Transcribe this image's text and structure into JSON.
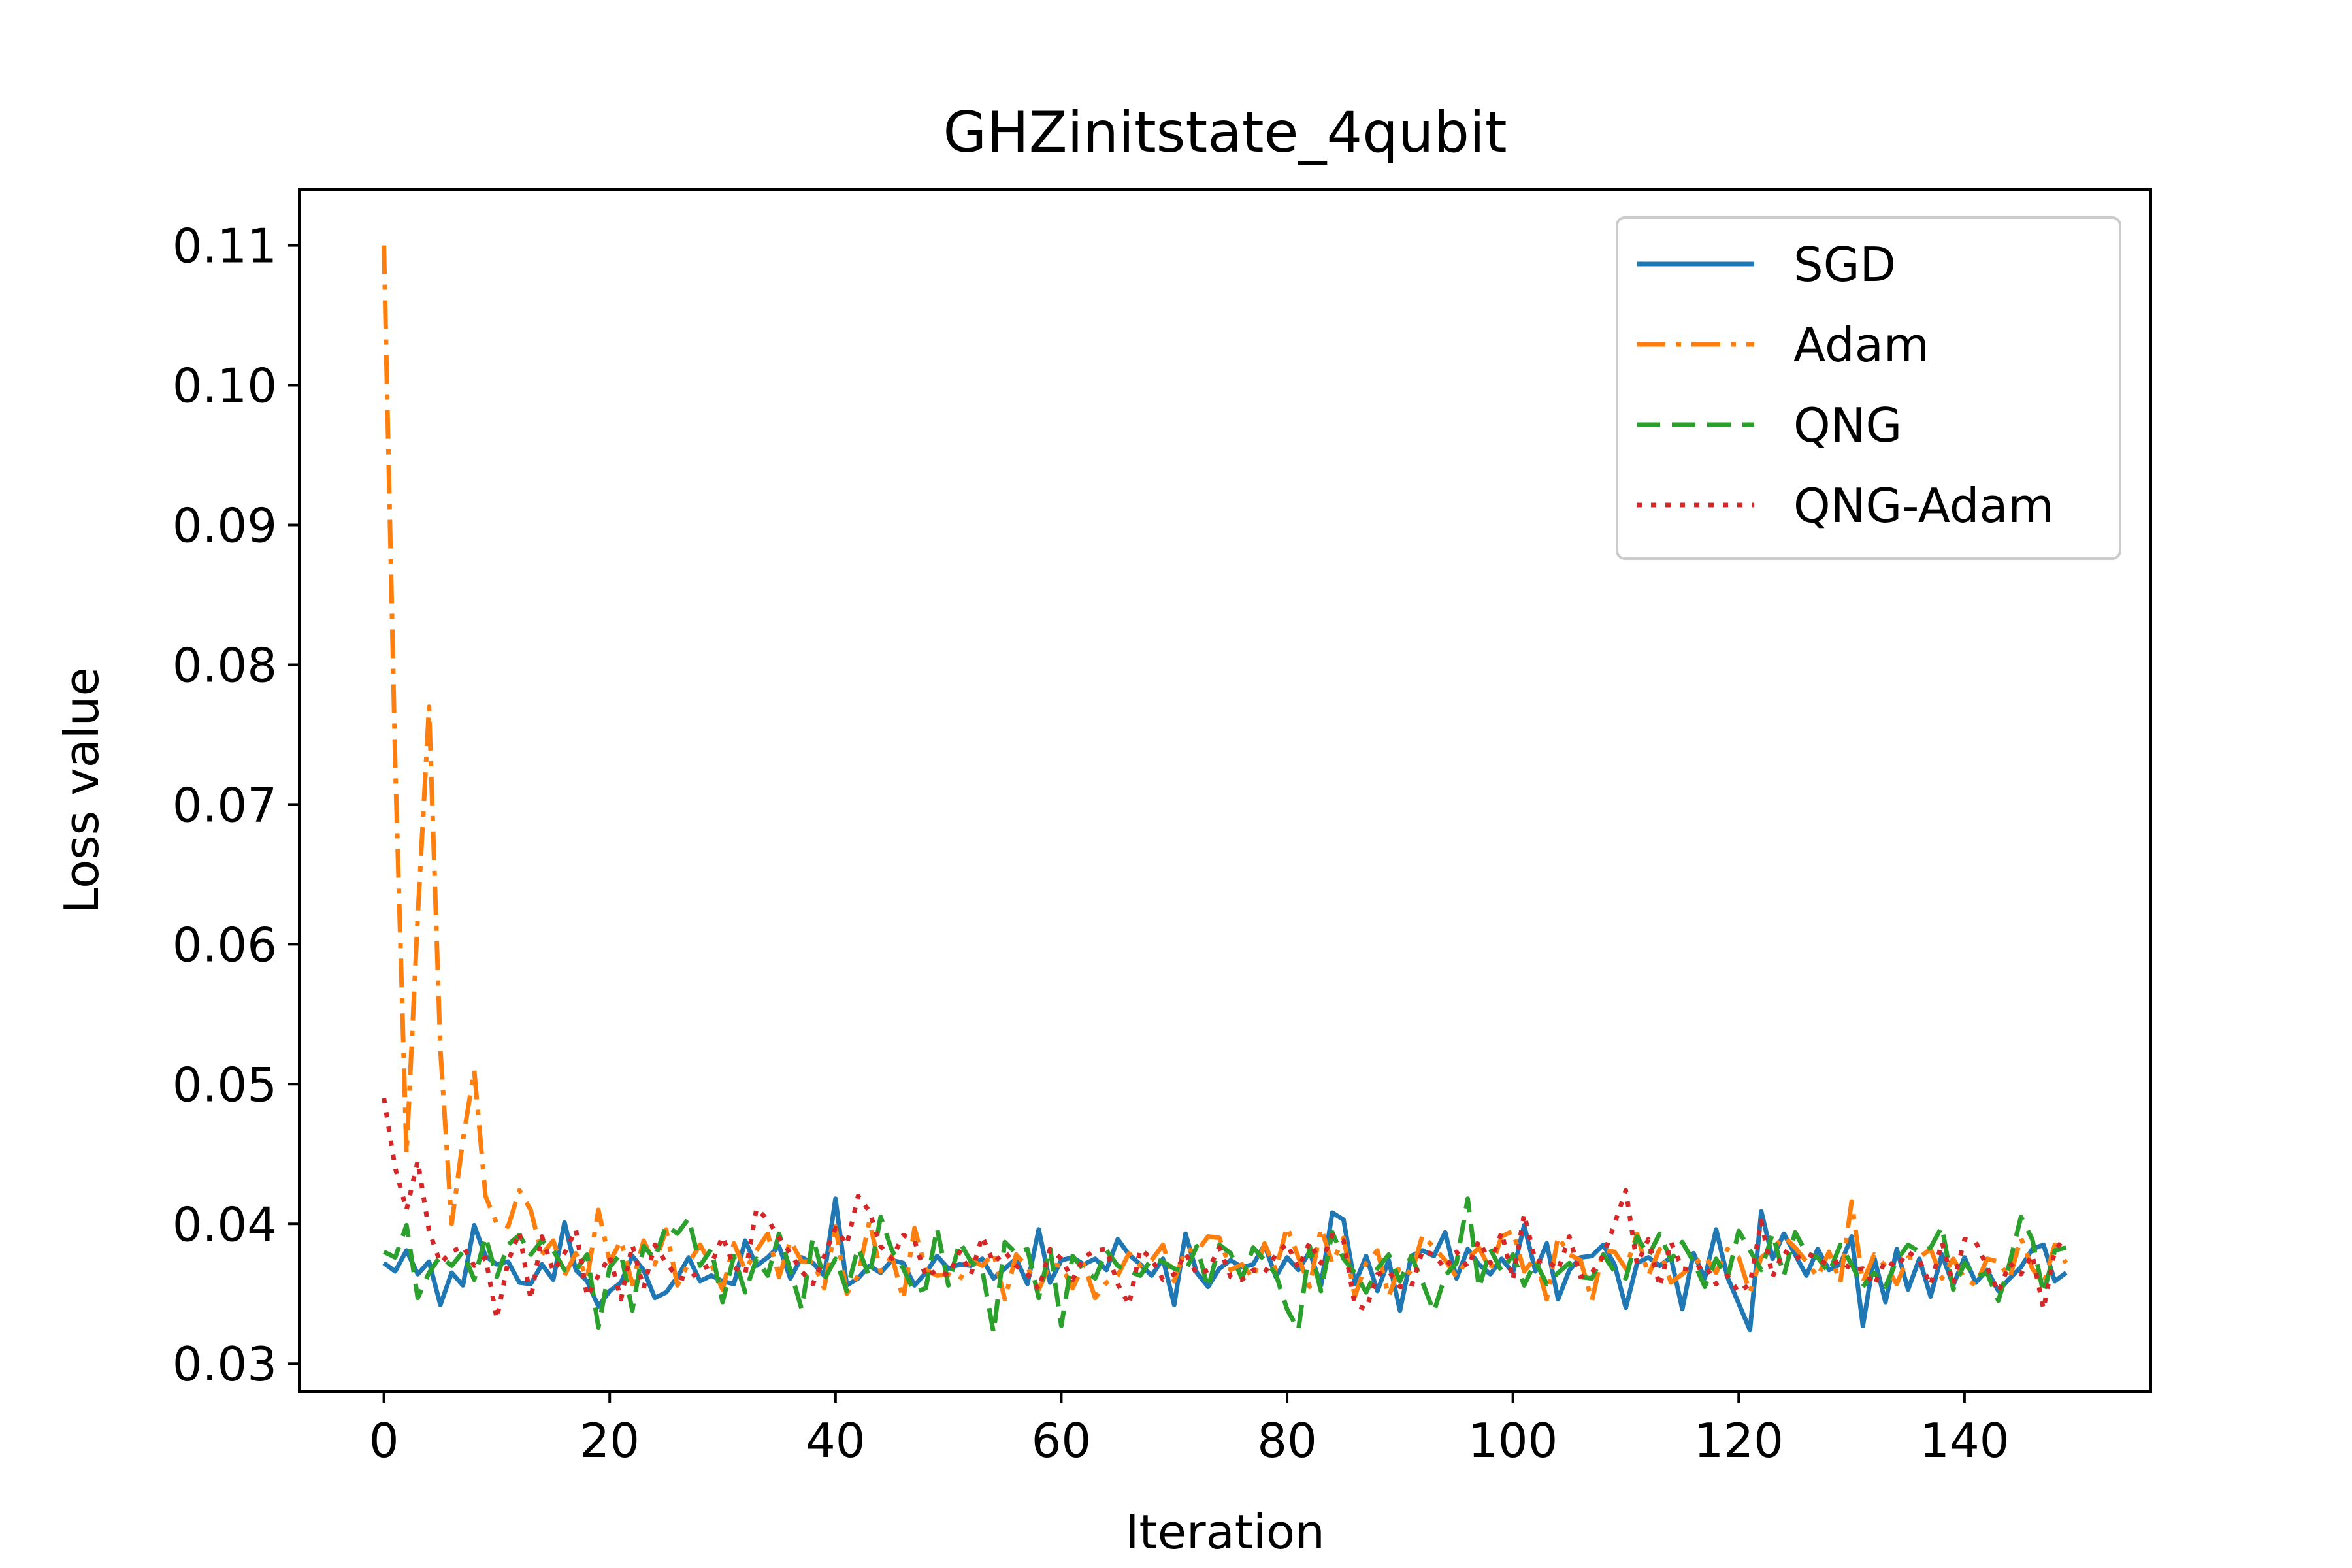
{
  "chart_data": {
    "type": "line",
    "title": "GHZinitstate_4qubit",
    "xlabel": "Iteration",
    "ylabel": "Loss value",
    "xlim": [
      -7.5,
      156.5
    ],
    "ylim": [
      0.028,
      0.114
    ],
    "xticks": [
      0,
      20,
      40,
      60,
      80,
      100,
      120,
      140
    ],
    "yticks": [
      0.03,
      0.04,
      0.05,
      0.06,
      0.07,
      0.08,
      0.09,
      0.1,
      0.11
    ],
    "ytick_labels": [
      "0.03",
      "0.04",
      "0.05",
      "0.06",
      "0.07",
      "0.08",
      "0.09",
      "0.10",
      "0.11"
    ],
    "grid": false,
    "legend": "top-right",
    "colors": {
      "SGD": "#1f77b4",
      "Adam": "#ff7f0e",
      "QNG": "#2ca02c",
      "QNG-Adam": "#d62728"
    },
    "series": [
      {
        "name": "SGD",
        "style": "solid",
        "values": [
          0.0372,
          0.0366,
          0.0381,
          0.0364,
          0.0373,
          0.0342,
          0.0365,
          0.0356,
          0.0399,
          0.0377,
          0.0371,
          0.0373,
          0.0358,
          0.0357,
          0.0371,
          0.036,
          0.0401,
          0.0367,
          0.0359,
          0.0341,
          0.0352,
          0.0358,
          0.0377,
          0.0367,
          0.0347,
          0.0351,
          0.0362,
          0.0376,
          0.0359,
          0.0363,
          0.0359,
          0.0357,
          0.0388,
          0.037,
          0.0376,
          0.0384,
          0.0361,
          0.0376,
          0.0372,
          0.0363,
          0.0418,
          0.0356,
          0.0361,
          0.037,
          0.0365,
          0.0374,
          0.0372,
          0.0356,
          0.0365,
          0.0377,
          0.0368,
          0.0371,
          0.037,
          0.0375,
          0.0361,
          0.0368,
          0.0375,
          0.0357,
          0.0396,
          0.0358,
          0.0374,
          0.0376,
          0.0371,
          0.0375,
          0.0367,
          0.0389,
          0.0378,
          0.0371,
          0.0363,
          0.0375,
          0.0342,
          0.0393,
          0.0365,
          0.0355,
          0.0368,
          0.0374,
          0.0369,
          0.0371,
          0.0385,
          0.0362,
          0.0376,
          0.0367,
          0.038,
          0.0356,
          0.0408,
          0.0403,
          0.0357,
          0.0377,
          0.0352,
          0.0374,
          0.0338,
          0.0377,
          0.0381,
          0.0377,
          0.0394,
          0.0361,
          0.0382,
          0.0371,
          0.0364,
          0.0375,
          0.0365,
          0.0399,
          0.0366,
          0.0386,
          0.0346,
          0.0367,
          0.0376,
          0.0377,
          0.0385,
          0.0371,
          0.034,
          0.0372,
          0.0376,
          0.037,
          0.0376,
          0.0339,
          0.0379,
          0.0361,
          0.0396,
          0.0362,
          0.0343,
          0.0324,
          0.0409,
          0.0375,
          0.0393,
          0.0378,
          0.0363,
          0.0382,
          0.0367,
          0.0371,
          0.0391,
          0.0327,
          0.0376,
          0.0344,
          0.0382,
          0.0353,
          0.0375,
          0.0348,
          0.0378,
          0.0356,
          0.0376,
          0.0358,
          0.0367,
          0.0352,
          0.0361,
          0.0369,
          0.0382,
          0.0385,
          0.0359,
          0.0365
        ]
      },
      {
        "name": "Adam",
        "style": "dashdot",
        "values": [
          0.11,
          0.073,
          0.045,
          0.062,
          0.077,
          0.0525,
          0.04,
          0.046,
          0.051,
          0.042,
          0.04,
          0.0398,
          0.0424,
          0.041,
          0.0378,
          0.0388,
          0.0363,
          0.0379,
          0.0361,
          0.041,
          0.0373,
          0.0388,
          0.0357,
          0.0388,
          0.0371,
          0.0396,
          0.0356,
          0.0372,
          0.0385,
          0.0371,
          0.0353,
          0.0386,
          0.0367,
          0.0381,
          0.0393,
          0.0362,
          0.0388,
          0.0373,
          0.0373,
          0.0354,
          0.0398,
          0.035,
          0.0363,
          0.0402,
          0.0366,
          0.0377,
          0.0346,
          0.0397,
          0.0367,
          0.0363,
          0.0364,
          0.036,
          0.0374,
          0.037,
          0.0379,
          0.0346,
          0.0378,
          0.0369,
          0.0353,
          0.0371,
          0.037,
          0.0354,
          0.0371,
          0.0347,
          0.0358,
          0.0363,
          0.0379,
          0.037,
          0.0374,
          0.0385,
          0.0359,
          0.0382,
          0.038,
          0.0391,
          0.039,
          0.0367,
          0.0371,
          0.0361,
          0.0386,
          0.0367,
          0.0398,
          0.0376,
          0.0355,
          0.0397,
          0.0372,
          0.039,
          0.0348,
          0.0372,
          0.0381,
          0.0348,
          0.037,
          0.0364,
          0.0392,
          0.0383,
          0.0374,
          0.0362,
          0.0375,
          0.0383,
          0.0367,
          0.0391,
          0.0395,
          0.0366,
          0.0376,
          0.0346,
          0.0391,
          0.0378,
          0.0374,
          0.0345,
          0.0381,
          0.038,
          0.0368,
          0.0393,
          0.0363,
          0.0382,
          0.0358,
          0.0364,
          0.0371,
          0.0377,
          0.0365,
          0.0382,
          0.0376,
          0.0351,
          0.0376,
          0.0382,
          0.0391,
          0.0383,
          0.0373,
          0.0362,
          0.038,
          0.0358,
          0.0416,
          0.0358,
          0.0378,
          0.037,
          0.0357,
          0.0376,
          0.0376,
          0.0382,
          0.0361,
          0.0375,
          0.0361,
          0.0356,
          0.0375,
          0.0373,
          0.0361,
          0.039,
          0.0368,
          0.0357,
          0.0385,
          0.0372
        ]
      },
      {
        "name": "QNG",
        "style": "dashed",
        "values": [
          0.038,
          0.0376,
          0.0399,
          0.0347,
          0.0365,
          0.0377,
          0.037,
          0.038,
          0.036,
          0.0391,
          0.0362,
          0.0385,
          0.0392,
          0.0378,
          0.0388,
          0.0381,
          0.0367,
          0.0367,
          0.0378,
          0.0326,
          0.0369,
          0.0379,
          0.0338,
          0.0384,
          0.0375,
          0.0399,
          0.0393,
          0.0404,
          0.037,
          0.0382,
          0.0344,
          0.0377,
          0.0351,
          0.0375,
          0.0363,
          0.0393,
          0.0367,
          0.0339,
          0.039,
          0.036,
          0.0375,
          0.0352,
          0.0383,
          0.0362,
          0.0405,
          0.0381,
          0.0368,
          0.0351,
          0.0354,
          0.0397,
          0.0356,
          0.0387,
          0.0373,
          0.0367,
          0.0322,
          0.0387,
          0.0379,
          0.0382,
          0.0347,
          0.0383,
          0.0327,
          0.0377,
          0.0367,
          0.0361,
          0.0381,
          0.037,
          0.0366,
          0.0363,
          0.0375,
          0.0373,
          0.0368,
          0.0366,
          0.0384,
          0.0354,
          0.0385,
          0.0379,
          0.0361,
          0.0383,
          0.0374,
          0.0364,
          0.0339,
          0.0324,
          0.0384,
          0.0352,
          0.0394,
          0.0375,
          0.0365,
          0.0351,
          0.0368,
          0.0378,
          0.0359,
          0.0377,
          0.0358,
          0.0337,
          0.0363,
          0.0372,
          0.0418,
          0.0354,
          0.0382,
          0.0366,
          0.0378,
          0.0356,
          0.0373,
          0.0357,
          0.0365,
          0.0372,
          0.0362,
          0.0361,
          0.0378,
          0.0366,
          0.0361,
          0.0391,
          0.0377,
          0.0393,
          0.0374,
          0.0387,
          0.0373,
          0.0355,
          0.0375,
          0.0361,
          0.0395,
          0.0381,
          0.0367,
          0.0393,
          0.0363,
          0.0394,
          0.0379,
          0.0376,
          0.0365,
          0.0385,
          0.0371,
          0.0355,
          0.0365,
          0.0355,
          0.0374,
          0.0385,
          0.038,
          0.0383,
          0.0398,
          0.0353,
          0.0372,
          0.0362,
          0.0365,
          0.0345,
          0.0372,
          0.0405,
          0.0389,
          0.035,
          0.0381,
          0.0383
        ]
      },
      {
        "name": "QNG-Adam",
        "style": "dotted",
        "values": [
          0.049,
          0.044,
          0.041,
          0.0445,
          0.0395,
          0.0372,
          0.038,
          0.0384,
          0.037,
          0.0376,
          0.0332,
          0.0373,
          0.0394,
          0.0346,
          0.0391,
          0.0366,
          0.0379,
          0.0396,
          0.0348,
          0.0363,
          0.0377,
          0.0346,
          0.0385,
          0.0354,
          0.0385,
          0.0372,
          0.0362,
          0.036,
          0.0367,
          0.0371,
          0.0391,
          0.0369,
          0.0364,
          0.0411,
          0.0403,
          0.039,
          0.0379,
          0.0366,
          0.0357,
          0.0377,
          0.0397,
          0.0385,
          0.042,
          0.0409,
          0.0384,
          0.0375,
          0.0392,
          0.0388,
          0.0362,
          0.0367,
          0.0363,
          0.038,
          0.0364,
          0.0391,
          0.0372,
          0.038,
          0.037,
          0.0364,
          0.0353,
          0.0382,
          0.0375,
          0.036,
          0.0376,
          0.0381,
          0.0382,
          0.0357,
          0.0342,
          0.0382,
          0.0375,
          0.036,
          0.0364,
          0.0379,
          0.0364,
          0.0367,
          0.0383,
          0.0362,
          0.036,
          0.0367,
          0.0365,
          0.0378,
          0.0386,
          0.0368,
          0.0387,
          0.0372,
          0.0392,
          0.0388,
          0.0342,
          0.0339,
          0.0364,
          0.0366,
          0.0355,
          0.0355,
          0.0381,
          0.0378,
          0.0368,
          0.038,
          0.0369,
          0.0388,
          0.0372,
          0.0394,
          0.036,
          0.0407,
          0.0373,
          0.0374,
          0.0367,
          0.0391,
          0.0362,
          0.0365,
          0.0377,
          0.04,
          0.0424,
          0.0371,
          0.0389,
          0.0355,
          0.0387,
          0.0368,
          0.0367,
          0.0371,
          0.0357,
          0.0363,
          0.0351,
          0.0357,
          0.0402,
          0.0362,
          0.0381,
          0.0375,
          0.0379,
          0.0375,
          0.037,
          0.0374,
          0.0367,
          0.0368,
          0.0356,
          0.0374,
          0.0369,
          0.038,
          0.0374,
          0.0356,
          0.0387,
          0.0357,
          0.0389,
          0.0387,
          0.0369,
          0.0351,
          0.0372,
          0.0364,
          0.0378,
          0.0339,
          0.0381,
          0.0391
        ]
      }
    ]
  }
}
